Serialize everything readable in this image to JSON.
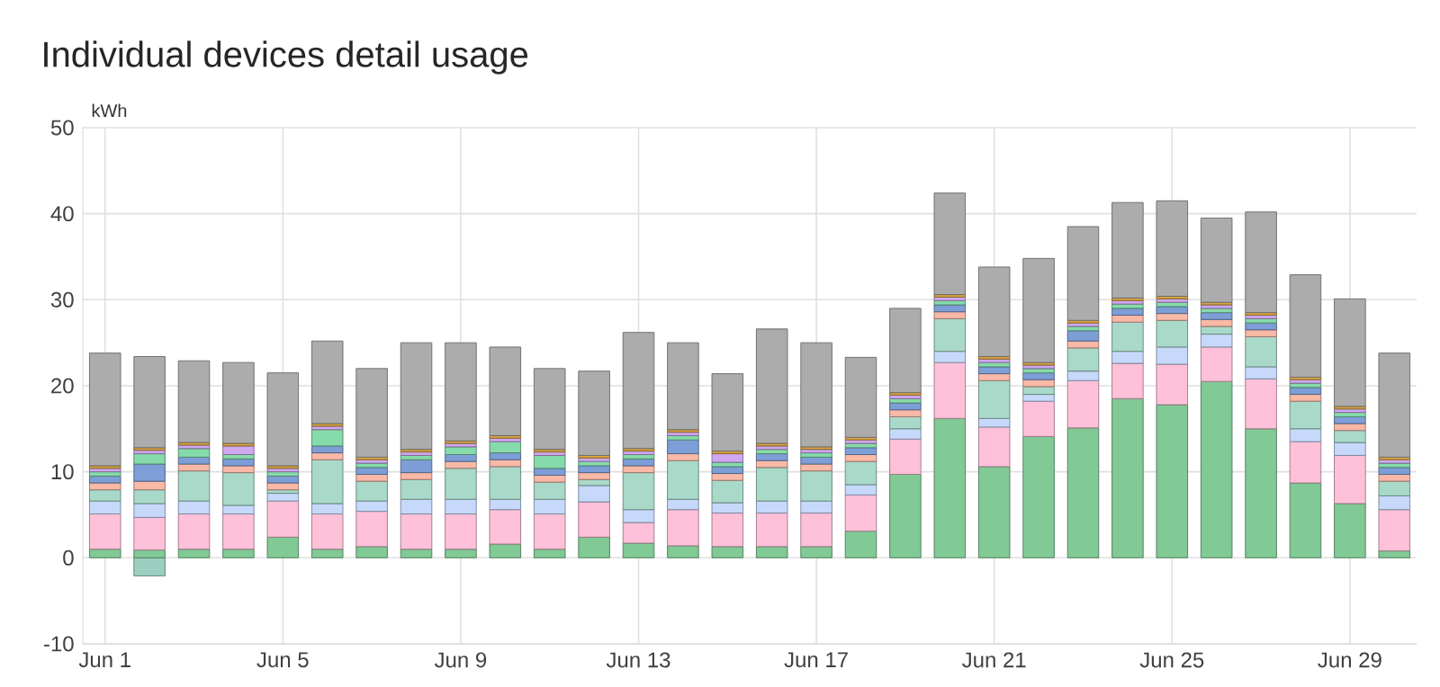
{
  "chart_data": {
    "type": "bar",
    "stacked": true,
    "title": "Individual devices detail usage",
    "ylabel": "kWh",
    "categories": [
      "Jun 1",
      null,
      null,
      null,
      "Jun 5",
      null,
      null,
      null,
      "Jun 9",
      null,
      null,
      null,
      "Jun 13",
      null,
      null,
      null,
      "Jun 17",
      null,
      null,
      null,
      "Jun 21",
      null,
      null,
      null,
      "Jun 25",
      null,
      null,
      null,
      "Jun 29",
      null
    ],
    "ylim": [
      -10,
      50
    ],
    "yticks": [
      -10,
      0,
      10,
      20,
      30,
      40,
      50
    ],
    "grid": true,
    "series": [
      {
        "color": "#9bd0c0",
        "values": [
          null,
          -2.1,
          null,
          null,
          null,
          null,
          null,
          null,
          null,
          null,
          null,
          null,
          null,
          null,
          null,
          null,
          null,
          null,
          null,
          null,
          null,
          null,
          null,
          null,
          null,
          null,
          null,
          null,
          null,
          null
        ]
      },
      {
        "color": "#81c995",
        "values": [
          1.0,
          0.9,
          1.0,
          1.0,
          2.4,
          1.0,
          1.3,
          1.0,
          1.0,
          1.6,
          1.0,
          2.4,
          1.7,
          1.4,
          1.3,
          1.3,
          1.3,
          3.1,
          9.7,
          16.2,
          10.6,
          14.1,
          15.1,
          18.5,
          17.8,
          20.5,
          15.0,
          8.7,
          6.3,
          0.8
        ]
      },
      {
        "color": "#ffc1d9",
        "values": [
          4.1,
          3.8,
          4.1,
          4.1,
          4.2,
          4.1,
          4.1,
          4.1,
          4.1,
          4.0,
          4.1,
          4.1,
          2.4,
          4.2,
          3.9,
          3.9,
          3.9,
          4.2,
          4.1,
          6.5,
          4.6,
          4.1,
          5.5,
          4.1,
          4.7,
          4.0,
          5.8,
          4.8,
          5.6,
          4.8
        ]
      },
      {
        "color": "#c6d9fb",
        "values": [
          1.5,
          1.6,
          1.5,
          1.0,
          0.9,
          1.2,
          1.2,
          1.7,
          1.7,
          1.2,
          1.7,
          1.9,
          1.5,
          1.2,
          1.2,
          1.4,
          1.4,
          1.2,
          1.2,
          1.3,
          1.0,
          0.8,
          1.1,
          1.4,
          2.0,
          1.5,
          1.4,
          1.5,
          1.5,
          1.6
        ]
      },
      {
        "color": "#a9d9c9",
        "values": [
          1.3,
          1.6,
          3.5,
          3.8,
          0.4,
          5.1,
          2.3,
          2.3,
          3.6,
          3.8,
          2.0,
          0.7,
          4.3,
          4.5,
          2.6,
          3.9,
          3.5,
          2.7,
          1.4,
          3.8,
          4.4,
          0.9,
          2.7,
          3.4,
          3.1,
          0.9,
          3.5,
          3.2,
          1.4,
          1.7
        ]
      },
      {
        "color": "#f9b9a6",
        "values": [
          0.8,
          1.0,
          0.8,
          0.8,
          0.8,
          0.8,
          0.8,
          0.8,
          0.8,
          0.8,
          0.8,
          0.8,
          0.8,
          0.8,
          0.8,
          0.8,
          0.8,
          0.8,
          0.8,
          0.8,
          0.8,
          0.8,
          0.8,
          0.8,
          0.8,
          0.8,
          0.8,
          0.8,
          0.8,
          0.8
        ]
      },
      {
        "color": "#7d9ed6",
        "values": [
          0.8,
          2.0,
          0.8,
          0.8,
          0.8,
          0.8,
          0.8,
          1.5,
          0.8,
          0.8,
          0.8,
          0.8,
          0.8,
          1.6,
          0.8,
          0.8,
          0.8,
          0.8,
          0.8,
          0.8,
          0.8,
          0.8,
          1.2,
          0.8,
          0.8,
          0.8,
          0.8,
          0.8,
          0.8,
          0.8
        ]
      },
      {
        "color": "#86dbaa",
        "values": [
          0.5,
          1.2,
          1.0,
          0.5,
          0.5,
          1.9,
          0.5,
          0.5,
          0.9,
          1.3,
          1.5,
          0.5,
          0.5,
          0.5,
          0.5,
          0.5,
          0.5,
          0.5,
          0.5,
          0.5,
          0.5,
          0.5,
          0.5,
          0.5,
          0.5,
          0.5,
          0.5,
          0.5,
          0.5,
          0.5
        ]
      },
      {
        "color": "#cfa8ef",
        "values": [
          0.4,
          0.4,
          0.4,
          1.0,
          0.4,
          0.4,
          0.4,
          0.4,
          0.4,
          0.4,
          0.4,
          0.4,
          0.4,
          0.4,
          1.0,
          0.4,
          0.4,
          0.4,
          0.4,
          0.4,
          0.4,
          0.4,
          0.4,
          0.4,
          0.4,
          0.4,
          0.4,
          0.4,
          0.4,
          0.4
        ]
      },
      {
        "color": "#d9a441",
        "values": [
          0.3,
          0.3,
          0.3,
          0.3,
          0.3,
          0.3,
          0.3,
          0.3,
          0.3,
          0.3,
          0.3,
          0.3,
          0.3,
          0.3,
          0.3,
          0.3,
          0.3,
          0.3,
          0.3,
          0.3,
          0.3,
          0.3,
          0.3,
          0.3,
          0.3,
          0.3,
          0.3,
          0.3,
          0.3,
          0.3
        ]
      },
      {
        "color": "#acacac",
        "values": [
          13.1,
          10.6,
          9.5,
          9.4,
          10.8,
          9.6,
          10.3,
          12.4,
          11.4,
          10.3,
          9.4,
          9.8,
          13.5,
          10.1,
          9.0,
          13.3,
          12.1,
          9.3,
          9.8,
          11.8,
          10.4,
          12.1,
          10.9,
          11.1,
          11.1,
          9.8,
          11.7,
          11.9,
          12.5,
          12.1
        ]
      }
    ]
  }
}
